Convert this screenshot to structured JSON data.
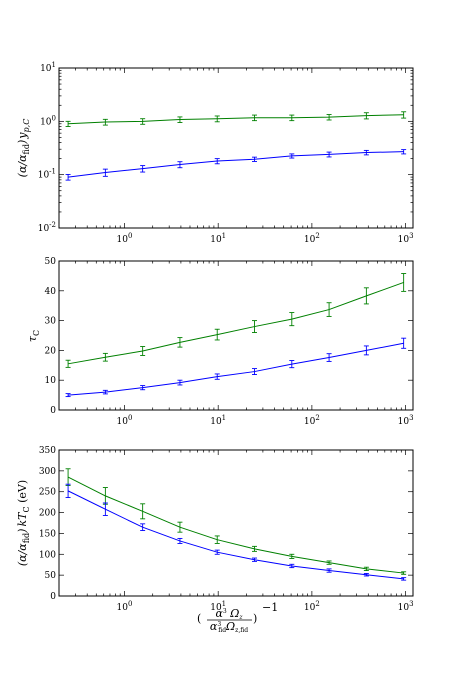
{
  "chart_data": [
    {
      "type": "line",
      "ylabel": "(α/α_fid) y_p,C",
      "xscale": "log",
      "yscale": "log",
      "xlim": [
        0.2,
        1200
      ],
      "ylim": [
        0.01,
        10
      ],
      "grid": false,
      "x": [
        0.25,
        0.625,
        1.5625,
        3.906,
        9.766,
        24.41,
        61.04,
        152.6,
        381.5,
        953.7
      ],
      "xticks": [
        {
          "v": 1,
          "b": "10",
          "e": "0"
        },
        {
          "v": 10,
          "b": "10",
          "e": "1"
        },
        {
          "v": 100,
          "b": "10",
          "e": "2"
        },
        {
          "v": 1000,
          "b": "10",
          "e": "3"
        }
      ],
      "yticks": [
        {
          "v": 0.01,
          "b": "10",
          "e": "-2"
        },
        {
          "v": 0.1,
          "b": "10",
          "e": "-1"
        },
        {
          "v": 1,
          "b": "10",
          "e": "0"
        },
        {
          "v": 10,
          "b": "10",
          "e": "1"
        }
      ],
      "series": [
        {
          "color": "#008000",
          "values": [
            0.9,
            0.97,
            1.0,
            1.08,
            1.12,
            1.17,
            1.17,
            1.2,
            1.28,
            1.33
          ],
          "err": [
            0.1,
            0.12,
            0.12,
            0.13,
            0.14,
            0.14,
            0.14,
            0.14,
            0.17,
            0.18
          ]
        },
        {
          "color": "#0000ff",
          "values": [
            0.09,
            0.11,
            0.13,
            0.155,
            0.18,
            0.195,
            0.225,
            0.24,
            0.26,
            0.27
          ],
          "err": [
            0.011,
            0.017,
            0.018,
            0.02,
            0.02,
            0.018,
            0.02,
            0.025,
            0.025,
            0.025
          ]
        }
      ]
    },
    {
      "type": "line",
      "ylabel": "τ_C",
      "xscale": "log",
      "yscale": "linear",
      "xlim": [
        0.2,
        1200
      ],
      "ylim": [
        0,
        50
      ],
      "grid": false,
      "x": [
        0.25,
        0.625,
        1.5625,
        3.906,
        9.766,
        24.41,
        61.04,
        152.6,
        381.5,
        953.7
      ],
      "xticks": [
        {
          "v": 1,
          "b": "10",
          "e": "0"
        },
        {
          "v": 10,
          "b": "10",
          "e": "1"
        },
        {
          "v": 100,
          "b": "10",
          "e": "2"
        },
        {
          "v": 1000,
          "b": "10",
          "e": "3"
        }
      ],
      "yticks": [
        {
          "v": 0,
          "t": "0"
        },
        {
          "v": 10,
          "t": "10"
        },
        {
          "v": 20,
          "t": "20"
        },
        {
          "v": 30,
          "t": "30"
        },
        {
          "v": 40,
          "t": "40"
        },
        {
          "v": 50,
          "t": "50"
        }
      ],
      "series": [
        {
          "color": "#008000",
          "values": [
            15.5,
            17.7,
            19.8,
            22.7,
            25.3,
            28.0,
            30.5,
            33.7,
            38.3,
            42.8
          ],
          "err": [
            1.2,
            1.3,
            1.5,
            1.6,
            1.8,
            2.0,
            2.2,
            2.3,
            2.7,
            3.0
          ]
        },
        {
          "color": "#0000ff",
          "values": [
            5.0,
            6.0,
            7.5,
            9.2,
            11.2,
            12.9,
            15.4,
            17.6,
            20.0,
            22.4
          ],
          "err": [
            0.5,
            0.6,
            0.7,
            0.8,
            0.9,
            1.0,
            1.2,
            1.3,
            1.5,
            1.7
          ]
        }
      ]
    },
    {
      "type": "line",
      "ylabel": "(α/α_fid) kT_C (eV)",
      "xscale": "log",
      "yscale": "linear",
      "xlim": [
        0.2,
        1200
      ],
      "ylim": [
        0,
        350
      ],
      "grid": false,
      "x": [
        0.25,
        0.625,
        1.5625,
        3.906,
        9.766,
        24.41,
        61.04,
        152.6,
        381.5,
        953.7
      ],
      "xticks": [
        {
          "v": 1,
          "b": "10",
          "e": "0"
        },
        {
          "v": 10,
          "b": "10",
          "e": "1"
        },
        {
          "v": 100,
          "b": "10",
          "e": "2"
        },
        {
          "v": 1000,
          "b": "10",
          "e": "3"
        }
      ],
      "yticks": [
        {
          "v": 0,
          "t": "0"
        },
        {
          "v": 50,
          "t": "50"
        },
        {
          "v": 100,
          "t": "100"
        },
        {
          "v": 150,
          "t": "150"
        },
        {
          "v": 200,
          "t": "200"
        },
        {
          "v": 250,
          "t": "250"
        },
        {
          "v": 300,
          "t": "300"
        },
        {
          "v": 350,
          "t": "350"
        }
      ],
      "series": [
        {
          "color": "#008000",
          "values": [
            285,
            240,
            203,
            165,
            135,
            113,
            95,
            80,
            65,
            55
          ],
          "err": [
            20,
            20,
            18,
            12,
            9,
            6,
            5,
            4,
            4,
            3
          ]
        },
        {
          "color": "#0000ff",
          "values": [
            252,
            208,
            165,
            132,
            105,
            87,
            72,
            61,
            51,
            41
          ],
          "err": [
            16,
            15,
            8,
            6,
            5,
            4,
            4,
            4,
            3,
            3
          ]
        }
      ]
    }
  ],
  "shared_xlabel": {
    "num": "α³ Ω_z",
    "den": "α³_fid Ω_z,fid",
    "exp": "−1"
  }
}
